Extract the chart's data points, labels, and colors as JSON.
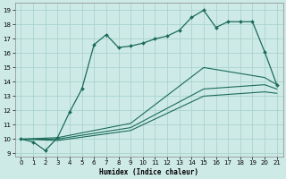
{
  "xlabel": "Humidex (Indice chaleur)",
  "background_color": "#ceeae6",
  "grid_color": "#aad4ce",
  "line_color": "#1a6b5a",
  "xlim": [
    -0.5,
    21.5
  ],
  "ylim": [
    8.8,
    19.5
  ],
  "xticks": [
    0,
    1,
    2,
    3,
    4,
    5,
    6,
    7,
    8,
    9,
    10,
    11,
    12,
    13,
    14,
    15,
    16,
    17,
    18,
    19,
    20,
    21
  ],
  "yticks": [
    9,
    10,
    11,
    12,
    13,
    14,
    15,
    16,
    17,
    18,
    19
  ],
  "line1_x": [
    0,
    1,
    2,
    3,
    4,
    5,
    6,
    7,
    8,
    9,
    10,
    11,
    12,
    13,
    14,
    15,
    16,
    17,
    18,
    19,
    20,
    21
  ],
  "line1_y": [
    10.0,
    9.8,
    9.2,
    10.1,
    11.9,
    13.5,
    16.6,
    17.3,
    16.4,
    16.5,
    16.7,
    17.0,
    17.2,
    17.6,
    18.5,
    19.0,
    17.8,
    18.2,
    18.2,
    18.2,
    16.1,
    13.8
  ],
  "line2_x": [
    0,
    3,
    9,
    15,
    20,
    21
  ],
  "line2_y": [
    10.0,
    10.1,
    11.1,
    15.0,
    14.3,
    13.8
  ],
  "line3_x": [
    0,
    3,
    9,
    15,
    20,
    21
  ],
  "line3_y": [
    10.0,
    10.0,
    10.8,
    13.5,
    13.8,
    13.5
  ],
  "line4_x": [
    0,
    3,
    9,
    15,
    20,
    21
  ],
  "line4_y": [
    10.0,
    9.9,
    10.6,
    13.0,
    13.3,
    13.2
  ]
}
